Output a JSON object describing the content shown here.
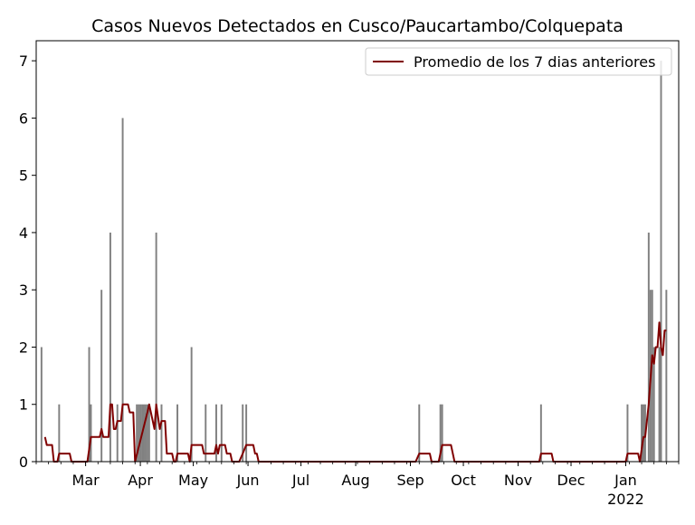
{
  "chart_data": {
    "type": "bar",
    "title": "Casos Nuevos Detectados en Cusco/Paucartambo/Colquepata",
    "xlabel": "",
    "ylabel": "",
    "x_range": [
      "2021-02-01",
      "2022-01-31"
    ],
    "ylim": [
      0,
      7.35
    ],
    "yticks": [
      0,
      1,
      2,
      3,
      4,
      5,
      6,
      7
    ],
    "xticks": [
      {
        "date": "2021-03-01",
        "label": "Mar"
      },
      {
        "date": "2021-04-01",
        "label": "Apr"
      },
      {
        "date": "2021-05-01",
        "label": "May"
      },
      {
        "date": "2021-06-01",
        "label": "Jun"
      },
      {
        "date": "2021-07-01",
        "label": "Jul"
      },
      {
        "date": "2021-08-01",
        "label": "Aug"
      },
      {
        "date": "2021-09-01",
        "label": "Sep"
      },
      {
        "date": "2021-10-01",
        "label": "Oct"
      },
      {
        "date": "2021-11-01",
        "label": "Nov"
      },
      {
        "date": "2021-12-01",
        "label": "Dec"
      },
      {
        "date": "2022-01-01",
        "label": "Jan",
        "sublabel": "2022"
      }
    ],
    "grid": false,
    "legend_position": "top-right",
    "colors": {
      "bars": "#808080",
      "line": "#800000"
    },
    "series": [
      {
        "type": "bar",
        "points": [
          [
            "2021-02-04",
            2
          ],
          [
            "2021-02-14",
            1
          ],
          [
            "2021-03-03",
            2
          ],
          [
            "2021-03-04",
            1
          ],
          [
            "2021-03-10",
            3
          ],
          [
            "2021-03-15",
            4
          ],
          [
            "2021-03-19",
            1
          ],
          [
            "2021-03-22",
            6
          ],
          [
            "2021-03-30",
            1
          ],
          [
            "2021-03-31",
            1
          ],
          [
            "2021-04-01",
            1
          ],
          [
            "2021-04-02",
            1
          ],
          [
            "2021-04-03",
            1
          ],
          [
            "2021-04-04",
            1
          ],
          [
            "2021-04-05",
            1
          ],
          [
            "2021-04-06",
            1
          ],
          [
            "2021-04-10",
            4
          ],
          [
            "2021-04-13",
            1
          ],
          [
            "2021-04-22",
            1
          ],
          [
            "2021-04-30",
            2
          ],
          [
            "2021-05-08",
            1
          ],
          [
            "2021-05-14",
            1
          ],
          [
            "2021-05-17",
            1
          ],
          [
            "2021-05-29",
            1
          ],
          [
            "2021-05-31",
            1
          ],
          [
            "2021-09-06",
            1
          ],
          [
            "2021-09-18",
            1
          ],
          [
            "2021-09-19",
            1
          ],
          [
            "2021-11-14",
            1
          ],
          [
            "2022-01-02",
            1
          ],
          [
            "2022-01-10",
            1
          ],
          [
            "2022-01-11",
            1
          ],
          [
            "2022-01-12",
            1
          ],
          [
            "2022-01-14",
            4
          ],
          [
            "2022-01-15",
            3
          ],
          [
            "2022-01-16",
            3
          ],
          [
            "2022-01-17",
            2
          ],
          [
            "2022-01-20",
            2
          ],
          [
            "2022-01-21",
            7
          ],
          [
            "2022-01-24",
            3
          ]
        ]
      },
      {
        "type": "line",
        "name": "Promedio de los 7 dias anteriores",
        "points": [
          [
            "2021-02-06",
            0.43
          ],
          [
            "2021-02-07",
            0.29
          ],
          [
            "2021-02-10",
            0.29
          ],
          [
            "2021-02-11",
            0
          ],
          [
            "2021-02-13",
            0
          ],
          [
            "2021-02-14",
            0.14
          ],
          [
            "2021-02-20",
            0.14
          ],
          [
            "2021-02-21",
            0
          ],
          [
            "2021-03-02",
            0
          ],
          [
            "2021-03-04",
            0.43
          ],
          [
            "2021-03-09",
            0.43
          ],
          [
            "2021-03-10",
            0.57
          ],
          [
            "2021-03-11",
            0.43
          ],
          [
            "2021-03-14",
            0.43
          ],
          [
            "2021-03-15",
            1.0
          ],
          [
            "2021-03-16",
            1.0
          ],
          [
            "2021-03-17",
            0.57
          ],
          [
            "2021-03-18",
            0.57
          ],
          [
            "2021-03-19",
            0.71
          ],
          [
            "2021-03-21",
            0.71
          ],
          [
            "2021-03-22",
            1.0
          ],
          [
            "2021-03-25",
            1.0
          ],
          [
            "2021-03-26",
            0.86
          ],
          [
            "2021-03-28",
            0.86
          ],
          [
            "2021-03-29",
            0
          ],
          [
            "2021-04-05",
            0.86
          ],
          [
            "2021-04-06",
            1.0
          ],
          [
            "2021-04-09",
            0.57
          ],
          [
            "2021-04-10",
            1.0
          ],
          [
            "2021-04-12",
            0.57
          ],
          [
            "2021-04-13",
            0.71
          ],
          [
            "2021-04-15",
            0.71
          ],
          [
            "2021-04-16",
            0.14
          ],
          [
            "2021-04-19",
            0.14
          ],
          [
            "2021-04-20",
            0
          ],
          [
            "2021-04-21",
            0
          ],
          [
            "2021-04-22",
            0.14
          ],
          [
            "2021-04-28",
            0.14
          ],
          [
            "2021-04-29",
            0
          ],
          [
            "2021-04-30",
            0.29
          ],
          [
            "2021-05-06",
            0.29
          ],
          [
            "2021-05-07",
            0.14
          ],
          [
            "2021-05-13",
            0.14
          ],
          [
            "2021-05-14",
            0.29
          ],
          [
            "2021-05-15",
            0.14
          ],
          [
            "2021-05-16",
            0.29
          ],
          [
            "2021-05-19",
            0.29
          ],
          [
            "2021-05-20",
            0.14
          ],
          [
            "2021-05-22",
            0.14
          ],
          [
            "2021-05-23",
            0
          ],
          [
            "2021-05-27",
            0
          ],
          [
            "2021-05-29",
            0.14
          ],
          [
            "2021-05-31",
            0.29
          ],
          [
            "2021-06-04",
            0.29
          ],
          [
            "2021-06-05",
            0.14
          ],
          [
            "2021-06-06",
            0.14
          ],
          [
            "2021-06-07",
            0
          ],
          [
            "2021-09-04",
            0
          ],
          [
            "2021-09-06",
            0.14
          ],
          [
            "2021-09-12",
            0.14
          ],
          [
            "2021-09-13",
            0
          ],
          [
            "2021-09-17",
            0
          ],
          [
            "2021-09-18",
            0.14
          ],
          [
            "2021-09-19",
            0.29
          ],
          [
            "2021-09-24",
            0.29
          ],
          [
            "2021-09-26",
            0
          ],
          [
            "2021-11-13",
            0
          ],
          [
            "2021-11-14",
            0.14
          ],
          [
            "2021-11-20",
            0.14
          ],
          [
            "2021-11-21",
            0
          ],
          [
            "2022-01-01",
            0
          ],
          [
            "2022-01-02",
            0.14
          ],
          [
            "2022-01-08",
            0.14
          ],
          [
            "2022-01-09",
            0
          ],
          [
            "2022-01-11",
            0.43
          ],
          [
            "2022-01-12",
            0.43
          ],
          [
            "2022-01-14",
            1.0
          ],
          [
            "2022-01-15",
            1.43
          ],
          [
            "2022-01-16",
            1.86
          ],
          [
            "2022-01-17",
            1.71
          ],
          [
            "2022-01-18",
            2.0
          ],
          [
            "2022-01-19",
            2.0
          ],
          [
            "2022-01-20",
            2.43
          ],
          [
            "2022-01-21",
            2.0
          ],
          [
            "2022-01-22",
            1.86
          ],
          [
            "2022-01-23",
            2.29
          ],
          [
            "2022-01-24",
            2.29
          ]
        ]
      }
    ]
  }
}
